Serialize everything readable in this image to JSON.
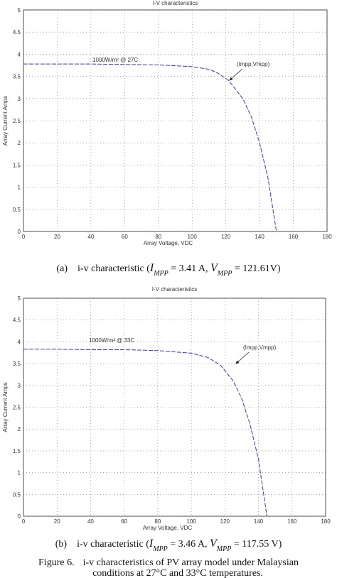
{
  "chart_data": [
    {
      "type": "line",
      "title": "I-V characteristics",
      "xlabel": "Array Voltage, VDC",
      "ylabel": "Array Current Amps",
      "x": [
        0,
        20,
        40,
        60,
        80,
        100,
        110,
        115,
        121.61,
        130,
        135,
        140,
        145,
        150
      ],
      "series": [
        {
          "name": "1000W/m² @ 27C",
          "color": "#3b3b9e",
          "values": [
            3.78,
            3.78,
            3.78,
            3.77,
            3.76,
            3.72,
            3.66,
            3.58,
            3.41,
            3.0,
            2.6,
            2.0,
            1.2,
            0
          ]
        }
      ],
      "annotations": [
        {
          "text": "(Impp,Vmpp)"
        }
      ],
      "xlim": [
        0,
        180
      ],
      "xticks": [
        0,
        20,
        40,
        60,
        80,
        100,
        120,
        140,
        160,
        180
      ],
      "ylim": [
        0,
        5
      ],
      "yticks": [
        0,
        0.5,
        1,
        1.5,
        2,
        2.5,
        3,
        3.5,
        4,
        4.5,
        5
      ],
      "grid": true
    },
    {
      "type": "line",
      "title": "I-V characteristics",
      "xlabel": "Array Voltage, VDC",
      "ylabel": "Array Current Amps",
      "x": [
        0,
        20,
        40,
        60,
        80,
        100,
        110,
        117.55,
        125,
        130,
        135,
        140,
        145
      ],
      "series": [
        {
          "name": "1000W/m² @ 33C",
          "color": "#3b3b9e",
          "values": [
            3.83,
            3.83,
            3.82,
            3.82,
            3.8,
            3.74,
            3.64,
            3.46,
            3.1,
            2.7,
            2.1,
            1.3,
            0
          ]
        }
      ],
      "annotations": [
        {
          "text": "(Impp,Vmpp)"
        }
      ],
      "xlim": [
        0,
        180
      ],
      "xticks": [
        0,
        20,
        40,
        60,
        80,
        100,
        120,
        140,
        160,
        180
      ],
      "ylim": [
        0,
        5
      ],
      "yticks": [
        0,
        0.5,
        1,
        1.5,
        2,
        2.5,
        3,
        3.5,
        4,
        4.5,
        5
      ],
      "grid": true
    }
  ],
  "captions": [
    [
      "(a)",
      "i-v characteristic (",
      {
        "main": "I",
        "sub": "MPP"
      },
      " = 3.41 A, ",
      {
        "main": "V",
        "sub": "MPP"
      },
      " = 121.61V)"
    ],
    [
      "(b)",
      "i-v characteristic (",
      {
        "main": "I",
        "sub": "MPP"
      },
      " = 3.46 A, ",
      {
        "main": "V",
        "sub": "MPP"
      },
      " = 117.55 V)"
    ]
  ],
  "figure_caption": [
    "Figure 6.",
    "i-v characteristics of PV array model under Malaysian",
    "conditions at 27°C and 33°C temperatures."
  ]
}
